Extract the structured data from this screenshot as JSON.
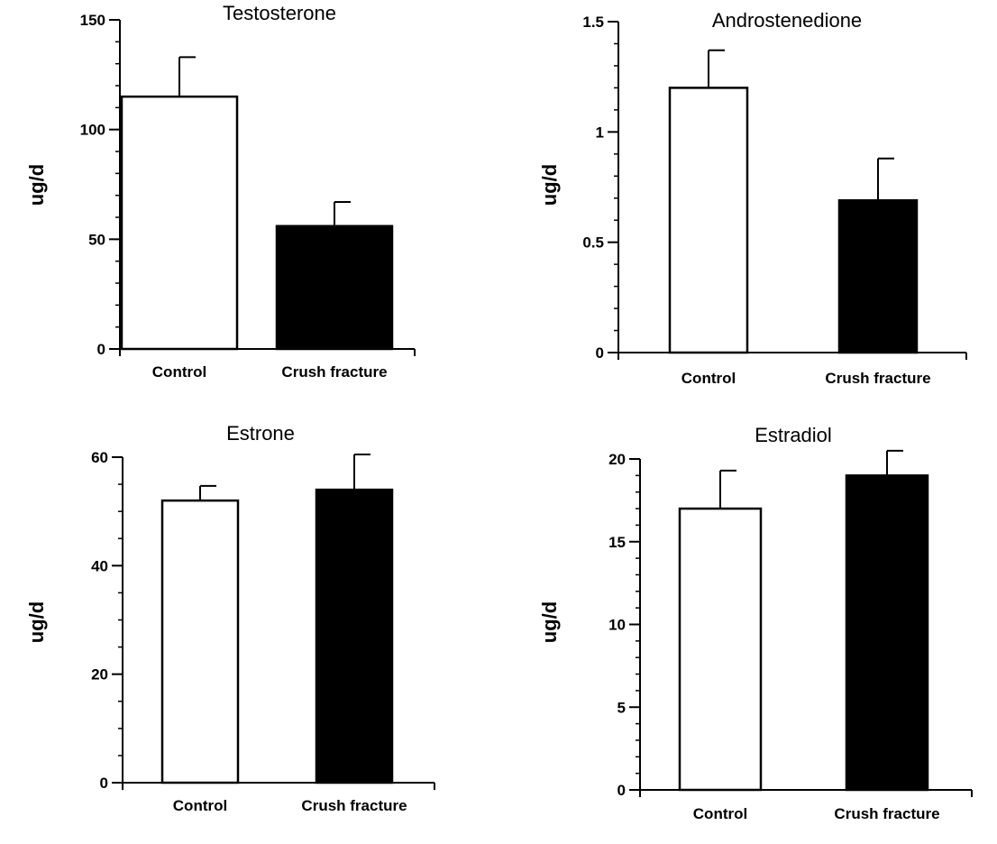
{
  "chart_data": [
    {
      "type": "bar",
      "title": "Testosterone",
      "ylabel": "ug/d",
      "categories": [
        "Control",
        "Crush fracture"
      ],
      "values": [
        115,
        56
      ],
      "errors": [
        18,
        11
      ],
      "bar_fills": [
        "#ffffff",
        "#000000"
      ],
      "ylim": [
        0,
        150
      ],
      "yticks": [
        0,
        50,
        100,
        150
      ],
      "ytick_labels": [
        "0",
        "50",
        "100",
        "150"
      ],
      "minor_step": 10
    },
    {
      "type": "bar",
      "title": "Androstenedione",
      "ylabel": "ug/d",
      "categories": [
        "Control",
        "Crush fracture"
      ],
      "values": [
        1.2,
        0.69
      ],
      "errors": [
        0.17,
        0.19
      ],
      "bar_fills": [
        "#ffffff",
        "#000000"
      ],
      "ylim": [
        0,
        1.5
      ],
      "yticks": [
        0,
        0.5,
        1,
        1.5
      ],
      "ytick_labels": [
        "0",
        "0.5",
        "1",
        "1.5"
      ],
      "minor_step": 0.1
    },
    {
      "type": "bar",
      "title": "Estrone",
      "ylabel": "ug/d",
      "categories": [
        "Control",
        "Crush fracture"
      ],
      "values": [
        52,
        54
      ],
      "errors": [
        2.7,
        6.5
      ],
      "bar_fills": [
        "#ffffff",
        "#000000"
      ],
      "ylim": [
        0,
        60
      ],
      "yticks": [
        0,
        20,
        40,
        60
      ],
      "ytick_labels": [
        "0",
        "20",
        "40",
        "60"
      ],
      "minor_step": 5
    },
    {
      "type": "bar",
      "title": "Estradiol",
      "ylabel": "ug/d",
      "categories": [
        "Control",
        "Crush fracture"
      ],
      "values": [
        17,
        19
      ],
      "errors": [
        2.3,
        1.5
      ],
      "bar_fills": [
        "#ffffff",
        "#000000"
      ],
      "ylim": [
        0,
        20
      ],
      "yticks": [
        0,
        5,
        10,
        15,
        20
      ],
      "ytick_labels": [
        "0",
        "5",
        "10",
        "15",
        "20"
      ],
      "minor_step": 1
    }
  ]
}
